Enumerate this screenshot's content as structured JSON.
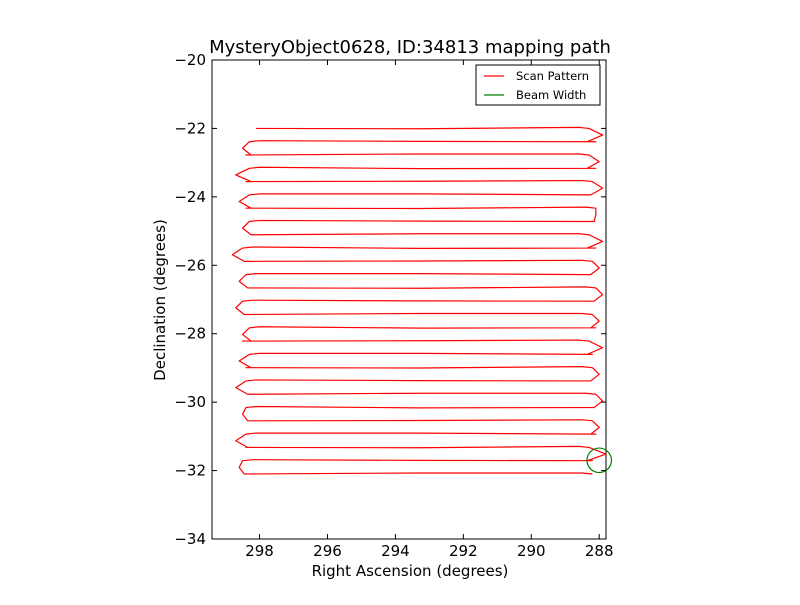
{
  "chart_data": {
    "type": "line",
    "title": "MysteryObject0628, ID:34813 mapping path",
    "xlabel": "Right Ascension (degrees)",
    "ylabel": "Declination (degrees)",
    "xlim": [
      299.4,
      287.8
    ],
    "ylim": [
      -34,
      -20
    ],
    "x_ticks": [
      298,
      296,
      294,
      292,
      290,
      288
    ],
    "y_ticks": [
      -20,
      -22,
      -24,
      -26,
      -28,
      -30,
      -32,
      -34
    ],
    "x_tick_labels": [
      "298",
      "296",
      "294",
      "292",
      "290",
      "288"
    ],
    "y_tick_labels": [
      "−20",
      "−22",
      "−24",
      "−26",
      "−28",
      "−30",
      "−32",
      "−34"
    ],
    "grid": false,
    "legend_position": "top-right",
    "series": [
      {
        "name": "Scan Pattern",
        "color": "#ff0000",
        "scan": {
          "dec_start": -22.0,
          "dec_end": -32.1,
          "rows": 27,
          "ra_left_edges": [
            298.1,
            298.3,
            298.4,
            298.3,
            298.4,
            298.3,
            298.4,
            298.3,
            298.2,
            298.5,
            298.3,
            298.4,
            298.3,
            298.5,
            298.4,
            298.3,
            298.5,
            298.3,
            298.4,
            298.4,
            298.3,
            298.4,
            298.3,
            298.4,
            298.4,
            298.5,
            298.4
          ],
          "ra_right_edges": [
            288.3,
            288.1,
            288.3,
            288.1,
            288.2,
            288.3,
            288.1,
            288.2,
            288.3,
            288.1,
            288.2,
            288.3,
            288.1,
            288.2,
            288.2,
            288.1,
            288.3,
            288.2,
            288.2,
            288.3,
            288.1,
            288.3,
            288.2,
            288.1,
            288.3,
            288.2,
            288.2
          ],
          "ra_turn_left": [
            298.5,
            298.7,
            298.6,
            298.5,
            298.8,
            298.6,
            298.7,
            298.5,
            298.6,
            298.7,
            298.5,
            298.7,
            298.6,
            298.8
          ],
          "ra_turn_right": [
            287.9,
            288.0,
            287.9,
            288.1,
            287.9,
            288.0,
            287.9,
            288.0,
            287.9,
            288.0,
            287.9,
            288.0,
            287.8
          ]
        }
      },
      {
        "name": "Beam Width",
        "color": "#008000",
        "circle": {
          "ra_center": 288.0,
          "dec_center": -31.7,
          "radius_deg": 0.36
        }
      }
    ]
  }
}
